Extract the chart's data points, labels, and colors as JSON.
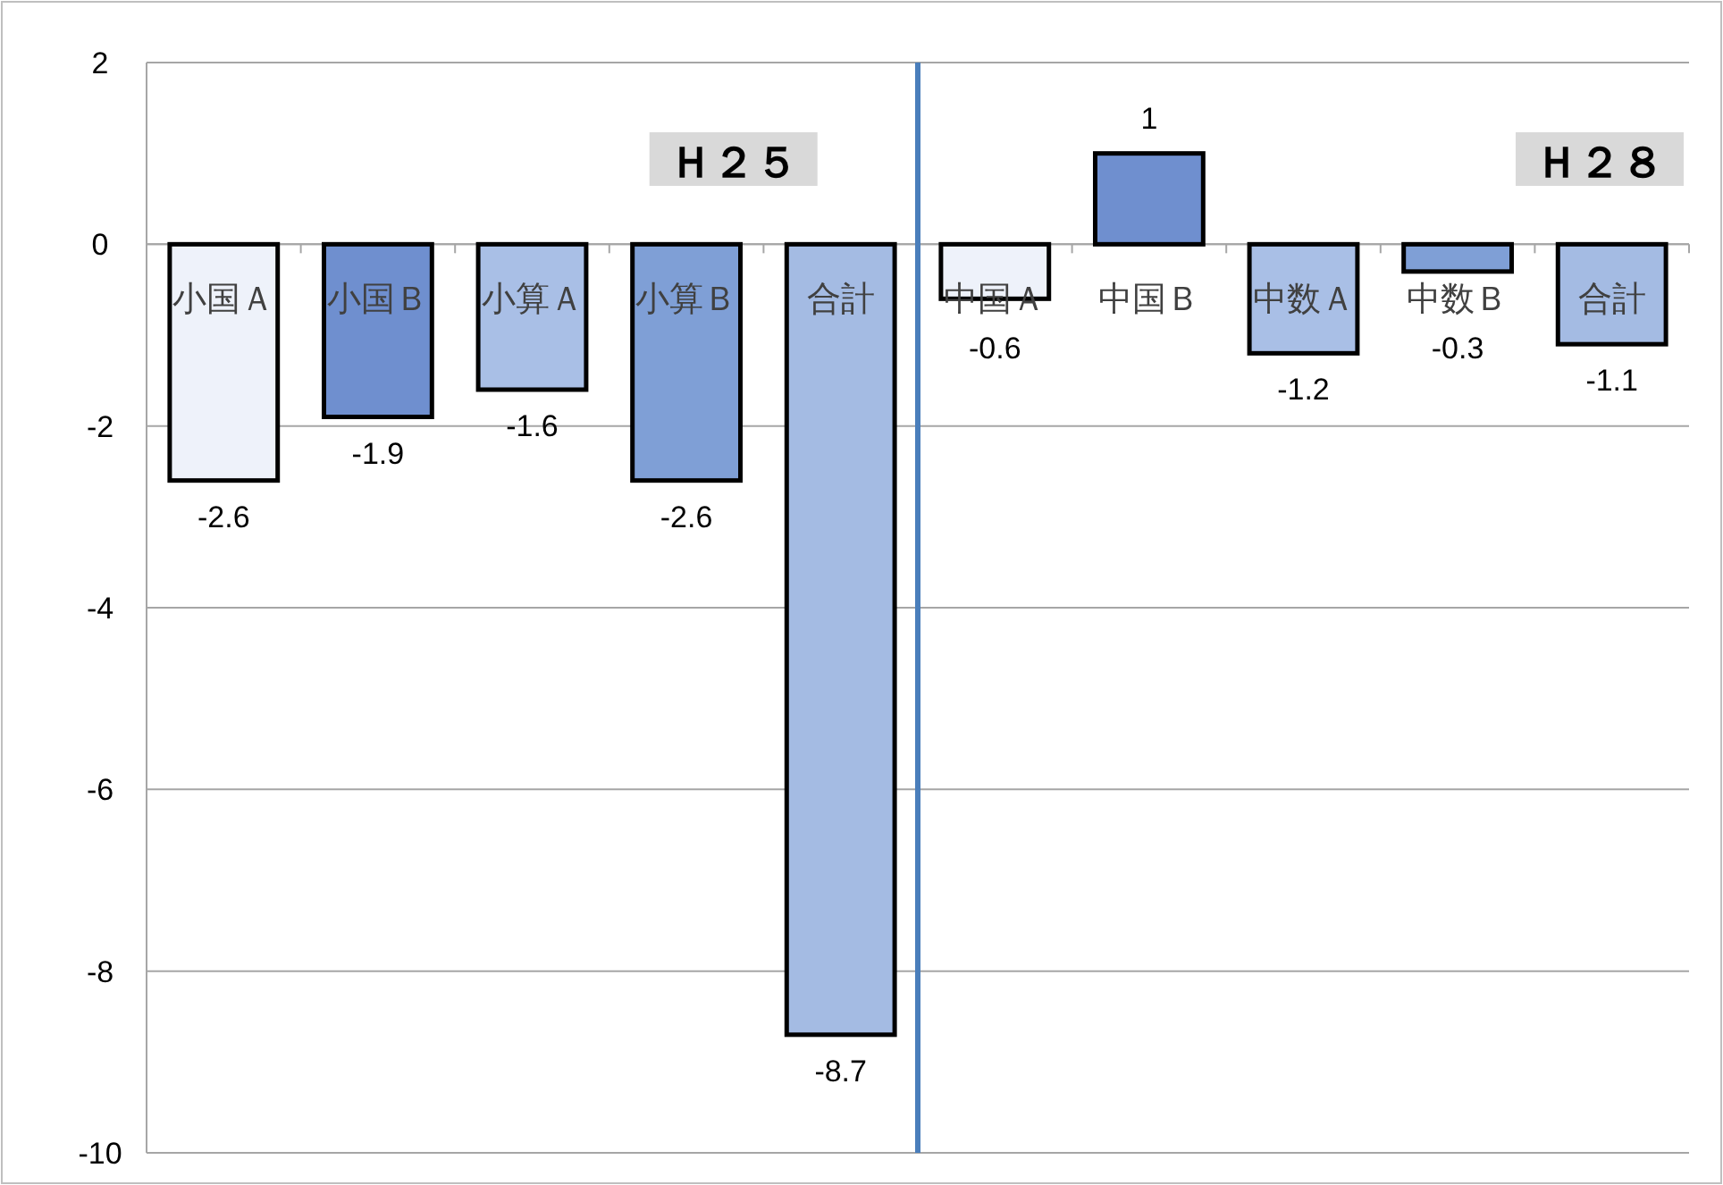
{
  "chart_data": {
    "type": "bar",
    "categories": [
      "小国Ａ",
      "小国Ｂ",
      "小算Ａ",
      "小算Ｂ",
      "合計",
      "中国Ａ",
      "中国Ｂ",
      "中数Ａ",
      "中数Ｂ",
      "合計"
    ],
    "values": [
      -2.6,
      -1.9,
      -1.6,
      -2.6,
      -8.7,
      -0.6,
      1,
      -1.2,
      -0.3,
      -1.1
    ],
    "colors": [
      "#eef2fa",
      "#6f8fcf",
      "#a9bfe6",
      "#7f9fd6",
      "#a4bbe3",
      "#eef2fa",
      "#6f8fcf",
      "#a9bfe6",
      "#7f9fd6",
      "#a4bbe3"
    ],
    "ylim": [
      -10,
      2
    ],
    "yticks": [
      -10,
      -8,
      -6,
      -4,
      -2,
      0,
      2
    ],
    "grid": "y",
    "data_labels": true,
    "annotations": [
      "Ｈ２５",
      "Ｈ２８"
    ]
  }
}
